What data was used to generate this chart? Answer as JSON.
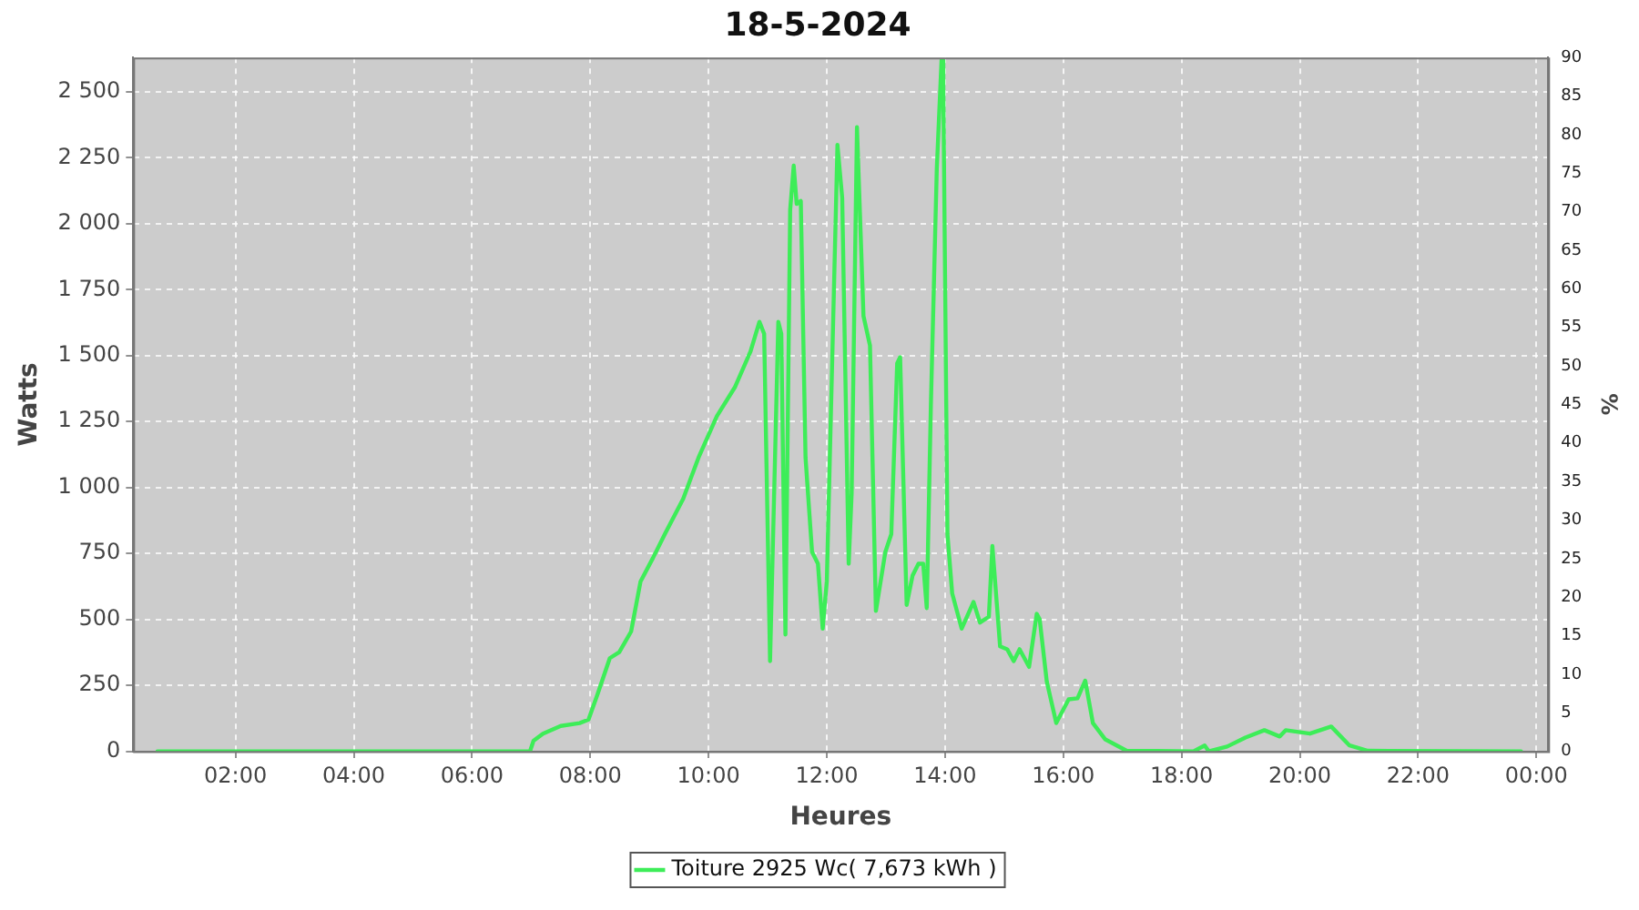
{
  "chart_data": {
    "type": "line",
    "title": "18-5-2024",
    "xlabel": "Heures",
    "ylabel": "Watts",
    "y2label": "%",
    "xlim": [
      0.27,
      24.2
    ],
    "xticks": [
      {
        "value": 2,
        "label": "02:00"
      },
      {
        "value": 4,
        "label": "04:00"
      },
      {
        "value": 6,
        "label": "06:00"
      },
      {
        "value": 8,
        "label": "08:00"
      },
      {
        "value": 10,
        "label": "10:00"
      },
      {
        "value": 12,
        "label": "12:00"
      },
      {
        "value": 14,
        "label": "14:00"
      },
      {
        "value": 16,
        "label": "16:00"
      },
      {
        "value": 18,
        "label": "18:00"
      },
      {
        "value": 20,
        "label": "20:00"
      },
      {
        "value": 22,
        "label": "22:00"
      },
      {
        "value": 24,
        "label": "00:00"
      }
    ],
    "ylim": [
      0,
      2630
    ],
    "yticks": [
      0,
      250,
      500,
      750,
      {
        "value": 1000,
        "label": "1 000"
      },
      {
        "value": 1250,
        "label": "1 250"
      },
      {
        "value": 1500,
        "label": "1 500"
      },
      {
        "value": 1750,
        "label": "1 750"
      },
      {
        "value": 2000,
        "label": "2 000"
      },
      {
        "value": 2250,
        "label": "2 250"
      },
      {
        "value": 2500,
        "label": "2 500"
      }
    ],
    "y2lim": [
      0,
      90
    ],
    "y2ticks": [
      0,
      5,
      10,
      15,
      20,
      25,
      30,
      35,
      40,
      45,
      50,
      55,
      60,
      65,
      70,
      75,
      80,
      85,
      90
    ],
    "grid": true,
    "legend": "bottom",
    "marker": "none",
    "line_style": "solid",
    "series": [
      {
        "name": "Toiture 2925 Wc( 7,673 kWh )",
        "color": "#3ded58",
        "x": [
          0.68,
          3.0,
          5.0,
          6.0,
          6.98,
          7.04,
          7.2,
          7.5,
          7.82,
          7.97,
          8.13,
          8.33,
          8.49,
          8.69,
          8.85,
          9.06,
          9.26,
          9.57,
          9.83,
          10.14,
          10.45,
          10.71,
          10.86,
          10.94,
          11.04,
          11.18,
          11.23,
          11.3,
          11.38,
          11.44,
          11.49,
          11.56,
          11.64,
          11.75,
          11.85,
          11.93,
          12.0,
          12.18,
          12.26,
          12.37,
          12.42,
          12.51,
          12.62,
          12.73,
          12.83,
          12.99,
          13.09,
          13.19,
          13.24,
          13.35,
          13.45,
          13.55,
          13.63,
          13.69,
          13.76,
          13.86,
          13.94,
          13.97,
          14.04,
          14.12,
          14.28,
          14.48,
          14.59,
          14.74,
          14.8,
          14.93,
          15.05,
          15.16,
          15.26,
          15.42,
          15.55,
          15.6,
          15.72,
          15.88,
          16.09,
          16.24,
          16.37,
          16.5,
          16.71,
          17.07,
          18.2,
          18.39,
          18.46,
          18.77,
          19.08,
          19.4,
          19.66,
          19.76,
          20.17,
          20.53,
          20.84,
          21.15,
          23.74
        ],
        "values": [
          0,
          0,
          0,
          0,
          0,
          40,
          67,
          96,
          107,
          120,
          221,
          353,
          376,
          454,
          644,
          733,
          823,
          957,
          1113,
          1270,
          1382,
          1516,
          1628,
          1583,
          342,
          1628,
          1583,
          443,
          2053,
          2220,
          2075,
          2086,
          1113,
          756,
          711,
          465,
          644,
          2299,
          2098,
          711,
          979,
          2366,
          1650,
          1538,
          532,
          756,
          823,
          1471,
          1494,
          555,
          666,
          711,
          711,
          543,
          1315,
          2209,
          2620,
          2522,
          823,
          599,
          465,
          566,
          488,
          510,
          778,
          398,
          387,
          342,
          387,
          320,
          521,
          500,
          264,
          107,
          197,
          201,
          268,
          107,
          45,
          2,
          0,
          22,
          0,
          18,
          52,
          80,
          56,
          80,
          67,
          94,
          22,
          2,
          0
        ]
      }
    ]
  }
}
